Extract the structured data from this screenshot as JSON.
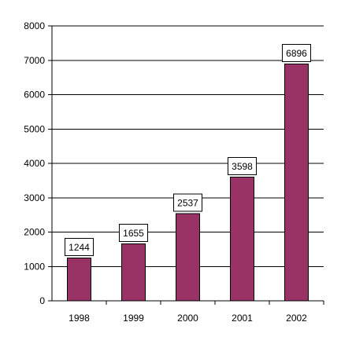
{
  "chart_data": {
    "type": "bar",
    "title": "",
    "xlabel": "",
    "ylabel": "",
    "categories": [
      "1998",
      "1999",
      "2000",
      "2001",
      "2002"
    ],
    "values": [
      1244,
      1655,
      2537,
      3598,
      6896
    ],
    "data_labels": [
      "1244",
      "1655",
      "2537",
      "3598",
      "6896"
    ],
    "yticks": [
      0,
      1000,
      2000,
      3000,
      4000,
      5000,
      6000,
      7000,
      8000
    ],
    "ylim": [
      0,
      8000
    ],
    "grid": true,
    "legend": "none",
    "colors": {
      "bar_fill": "#993366",
      "bar_stroke": "#000000",
      "gridline": "#000000",
      "axis": "#000000",
      "label_box_fill": "#ffffff",
      "label_box_stroke": "#000000"
    }
  }
}
